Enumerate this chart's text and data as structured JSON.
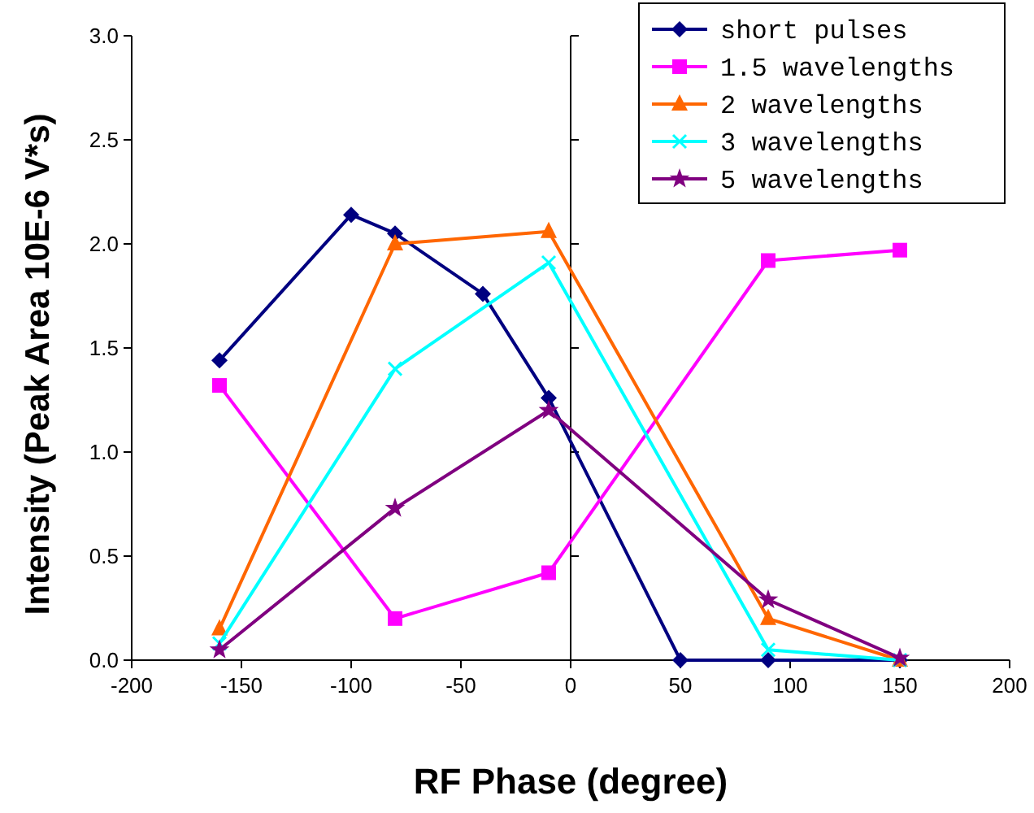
{
  "chart_data": {
    "type": "line",
    "xlabel": "RF Phase (degree)",
    "ylabel": "Intensity (Peak Area 10E-6 V*s)",
    "xlim": [
      -200,
      200
    ],
    "xticks": [
      -200,
      -150,
      -100,
      -50,
      0,
      50,
      100,
      150,
      200
    ],
    "ylim": [
      0,
      3
    ],
    "yticks": [
      {
        "value": 0,
        "label": "0.0"
      },
      {
        "value": 0.5,
        "label": "0.5"
      },
      {
        "value": 1,
        "label": "1.0"
      },
      {
        "value": 1.5,
        "label": "1.5"
      },
      {
        "value": 2,
        "label": "2.0"
      },
      {
        "value": 2.5,
        "label": "2.5"
      },
      {
        "value": 3,
        "label": "3.0"
      }
    ],
    "grid": false,
    "ref_lines": [
      {
        "axis": "x",
        "value": 0
      }
    ],
    "legend": "top right",
    "line_style": "solid",
    "series": [
      {
        "name": "short pulses",
        "color": "#000080",
        "marker": "diamond",
        "x": [
          -160,
          -100,
          -80,
          -40,
          -10,
          50,
          90,
          150
        ],
        "values": [
          1.44,
          2.14,
          2.05,
          1.76,
          1.26,
          0,
          0,
          0
        ]
      },
      {
        "name": "1.5 wavelengths",
        "color": "#ff00ff",
        "marker": "square",
        "x": [
          -160,
          -80,
          -10,
          90,
          150
        ],
        "values": [
          1.32,
          0.2,
          0.42,
          1.92,
          1.97
        ]
      },
      {
        "name": "2 wavelengths",
        "color": "#ff6600",
        "marker": "triangle",
        "x": [
          -160,
          -80,
          -10,
          90,
          150
        ],
        "values": [
          0.15,
          2.0,
          2.06,
          0.2,
          0
        ]
      },
      {
        "name": "3 wavelengths",
        "color": "#00ffff",
        "marker": "cross",
        "x": [
          -160,
          -80,
          -10,
          90,
          150
        ],
        "values": [
          0.08,
          1.4,
          1.91,
          0.05,
          0
        ]
      },
      {
        "name": "5 wavelengths",
        "color": "#800080",
        "marker": "star",
        "x": [
          -160,
          -80,
          -10,
          90,
          150
        ],
        "values": [
          0.05,
          0.73,
          1.2,
          0.29,
          0.01
        ]
      }
    ]
  }
}
